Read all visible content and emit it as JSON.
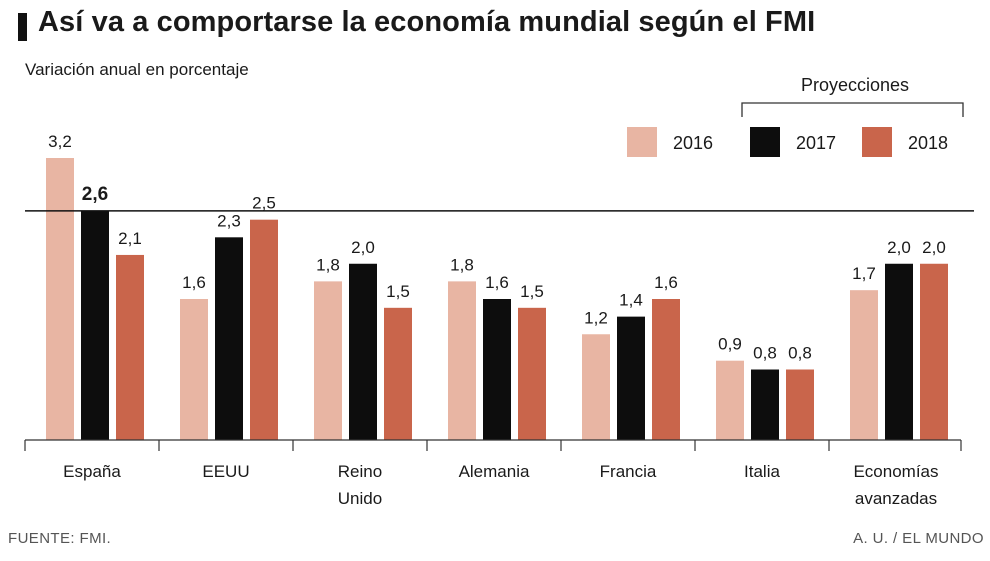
{
  "title": "Así va a comportarse la economía mundial según el FMI",
  "subtitle": "Variación anual en porcentaje",
  "source": "FUENTE: FMI.",
  "credit": "A. U. / EL MUNDO",
  "projections_label": "Proyecciones",
  "colors": {
    "2016": "#e8b5a3",
    "2017": "#0d0d0d",
    "2018": "#c9654b"
  },
  "chart_data": {
    "type": "bar",
    "title": "Así va a comportarse la economía mundial según el FMI",
    "ylabel": "Variación anual en porcentaje",
    "xlabel": "",
    "ylim": [
      0,
      3.2
    ],
    "reference_line": 2.6,
    "legend_position": "top-right",
    "categories": [
      "España",
      "EEUU",
      "Reino Unido",
      "Alemania",
      "Francia",
      "Italia",
      "Economías avanzadas"
    ],
    "category_lines": [
      [
        "España"
      ],
      [
        "EEUU"
      ],
      [
        "Reino",
        "Unido"
      ],
      [
        "Alemania"
      ],
      [
        "Francia"
      ],
      [
        "Italia"
      ],
      [
        "Economías",
        "avanzadas"
      ]
    ],
    "series": [
      {
        "name": "2016",
        "values": [
          3.2,
          1.6,
          1.8,
          1.8,
          1.2,
          0.9,
          1.7
        ],
        "labels": [
          "3,2",
          "1,6",
          "1,8",
          "1,8",
          "1,2",
          "0,9",
          "1,7"
        ]
      },
      {
        "name": "2017",
        "values": [
          2.6,
          2.3,
          2.0,
          1.6,
          1.4,
          0.8,
          2.0
        ],
        "labels": [
          "2,6",
          "2,3",
          "2,0",
          "1,6",
          "1,4",
          "0,8",
          "2,0"
        ]
      },
      {
        "name": "2018",
        "values": [
          2.1,
          2.5,
          1.5,
          1.5,
          1.6,
          0.8,
          2.0
        ],
        "labels": [
          "2,1",
          "2,5",
          "1,5",
          "1,5",
          "1,6",
          "0,8",
          "2,0"
        ]
      }
    ]
  }
}
